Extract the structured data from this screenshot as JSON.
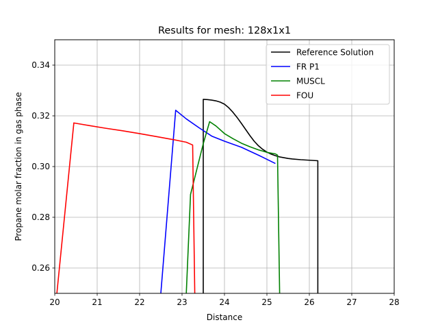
{
  "chart_data": {
    "type": "line",
    "title": "Results for mesh: 128x1x1",
    "xlabel": "Distance",
    "ylabel": "Propane molar fraction in gas phase",
    "xlim": [
      20,
      28
    ],
    "ylim": [
      0.25,
      0.35
    ],
    "xticks": [
      20,
      21,
      22,
      23,
      24,
      25,
      26,
      27,
      28
    ],
    "yticks": [
      0.26,
      0.28,
      0.3,
      0.32,
      0.34
    ],
    "xtick_labels": [
      "20",
      "21",
      "22",
      "23",
      "24",
      "25",
      "26",
      "27",
      "28"
    ],
    "ytick_labels": [
      "0.26",
      "0.28",
      "0.30",
      "0.32",
      "0.34"
    ],
    "grid": true,
    "legend_position": "top-right",
    "series": [
      {
        "name": "Reference Solution",
        "color": "#000000",
        "x": [
          23.5,
          23.5,
          23.6,
          23.7,
          23.8,
          23.9,
          24.0,
          24.1,
          24.2,
          24.3,
          24.4,
          24.5,
          24.6,
          24.7,
          24.8,
          24.9,
          25.0,
          25.1,
          25.2,
          25.3,
          25.4,
          25.5,
          25.6,
          25.8,
          26.0,
          26.2,
          26.2
        ],
        "y": [
          0.25,
          0.3265,
          0.3264,
          0.3262,
          0.3259,
          0.3254,
          0.3246,
          0.3232,
          0.3214,
          0.3193,
          0.317,
          0.3146,
          0.3122,
          0.31,
          0.3082,
          0.3068,
          0.3057,
          0.3049,
          0.3043,
          0.3038,
          0.3035,
          0.3032,
          0.303,
          0.3027,
          0.3025,
          0.3023,
          0.25
        ]
      },
      {
        "name": "FR P1",
        "color": "#0000ff",
        "x": [
          22.5,
          22.85,
          23.1,
          23.4,
          23.7,
          24.0,
          24.4,
          24.8,
          25.2,
          25.2
        ],
        "y": [
          0.25,
          0.3222,
          0.3188,
          0.3153,
          0.312,
          0.31,
          0.3076,
          0.3045,
          0.3012,
          0.3012
        ],
        "y_note_removed": true
      },
      {
        "name": "MUSCL",
        "color": "#008000",
        "x": [
          23.1,
          23.2,
          23.35,
          23.5,
          23.65,
          23.8,
          24.0,
          24.2,
          24.4,
          24.6,
          24.8,
          25.0,
          25.2,
          25.25,
          25.3
        ],
        "y": [
          0.25,
          0.289,
          0.299,
          0.309,
          0.3177,
          0.316,
          0.313,
          0.311,
          0.3092,
          0.3078,
          0.3066,
          0.3056,
          0.305,
          0.3045,
          0.25
        ]
      },
      {
        "name": "FOU",
        "color": "#ff0000",
        "x": [
          20.05,
          20.45,
          20.8,
          21.2,
          21.6,
          22.0,
          22.4,
          22.8,
          23.1,
          23.25,
          23.3
        ],
        "y": [
          0.25,
          0.3172,
          0.3162,
          0.3151,
          0.3141,
          0.313,
          0.3118,
          0.3106,
          0.3096,
          0.3085,
          0.25
        ]
      }
    ]
  }
}
